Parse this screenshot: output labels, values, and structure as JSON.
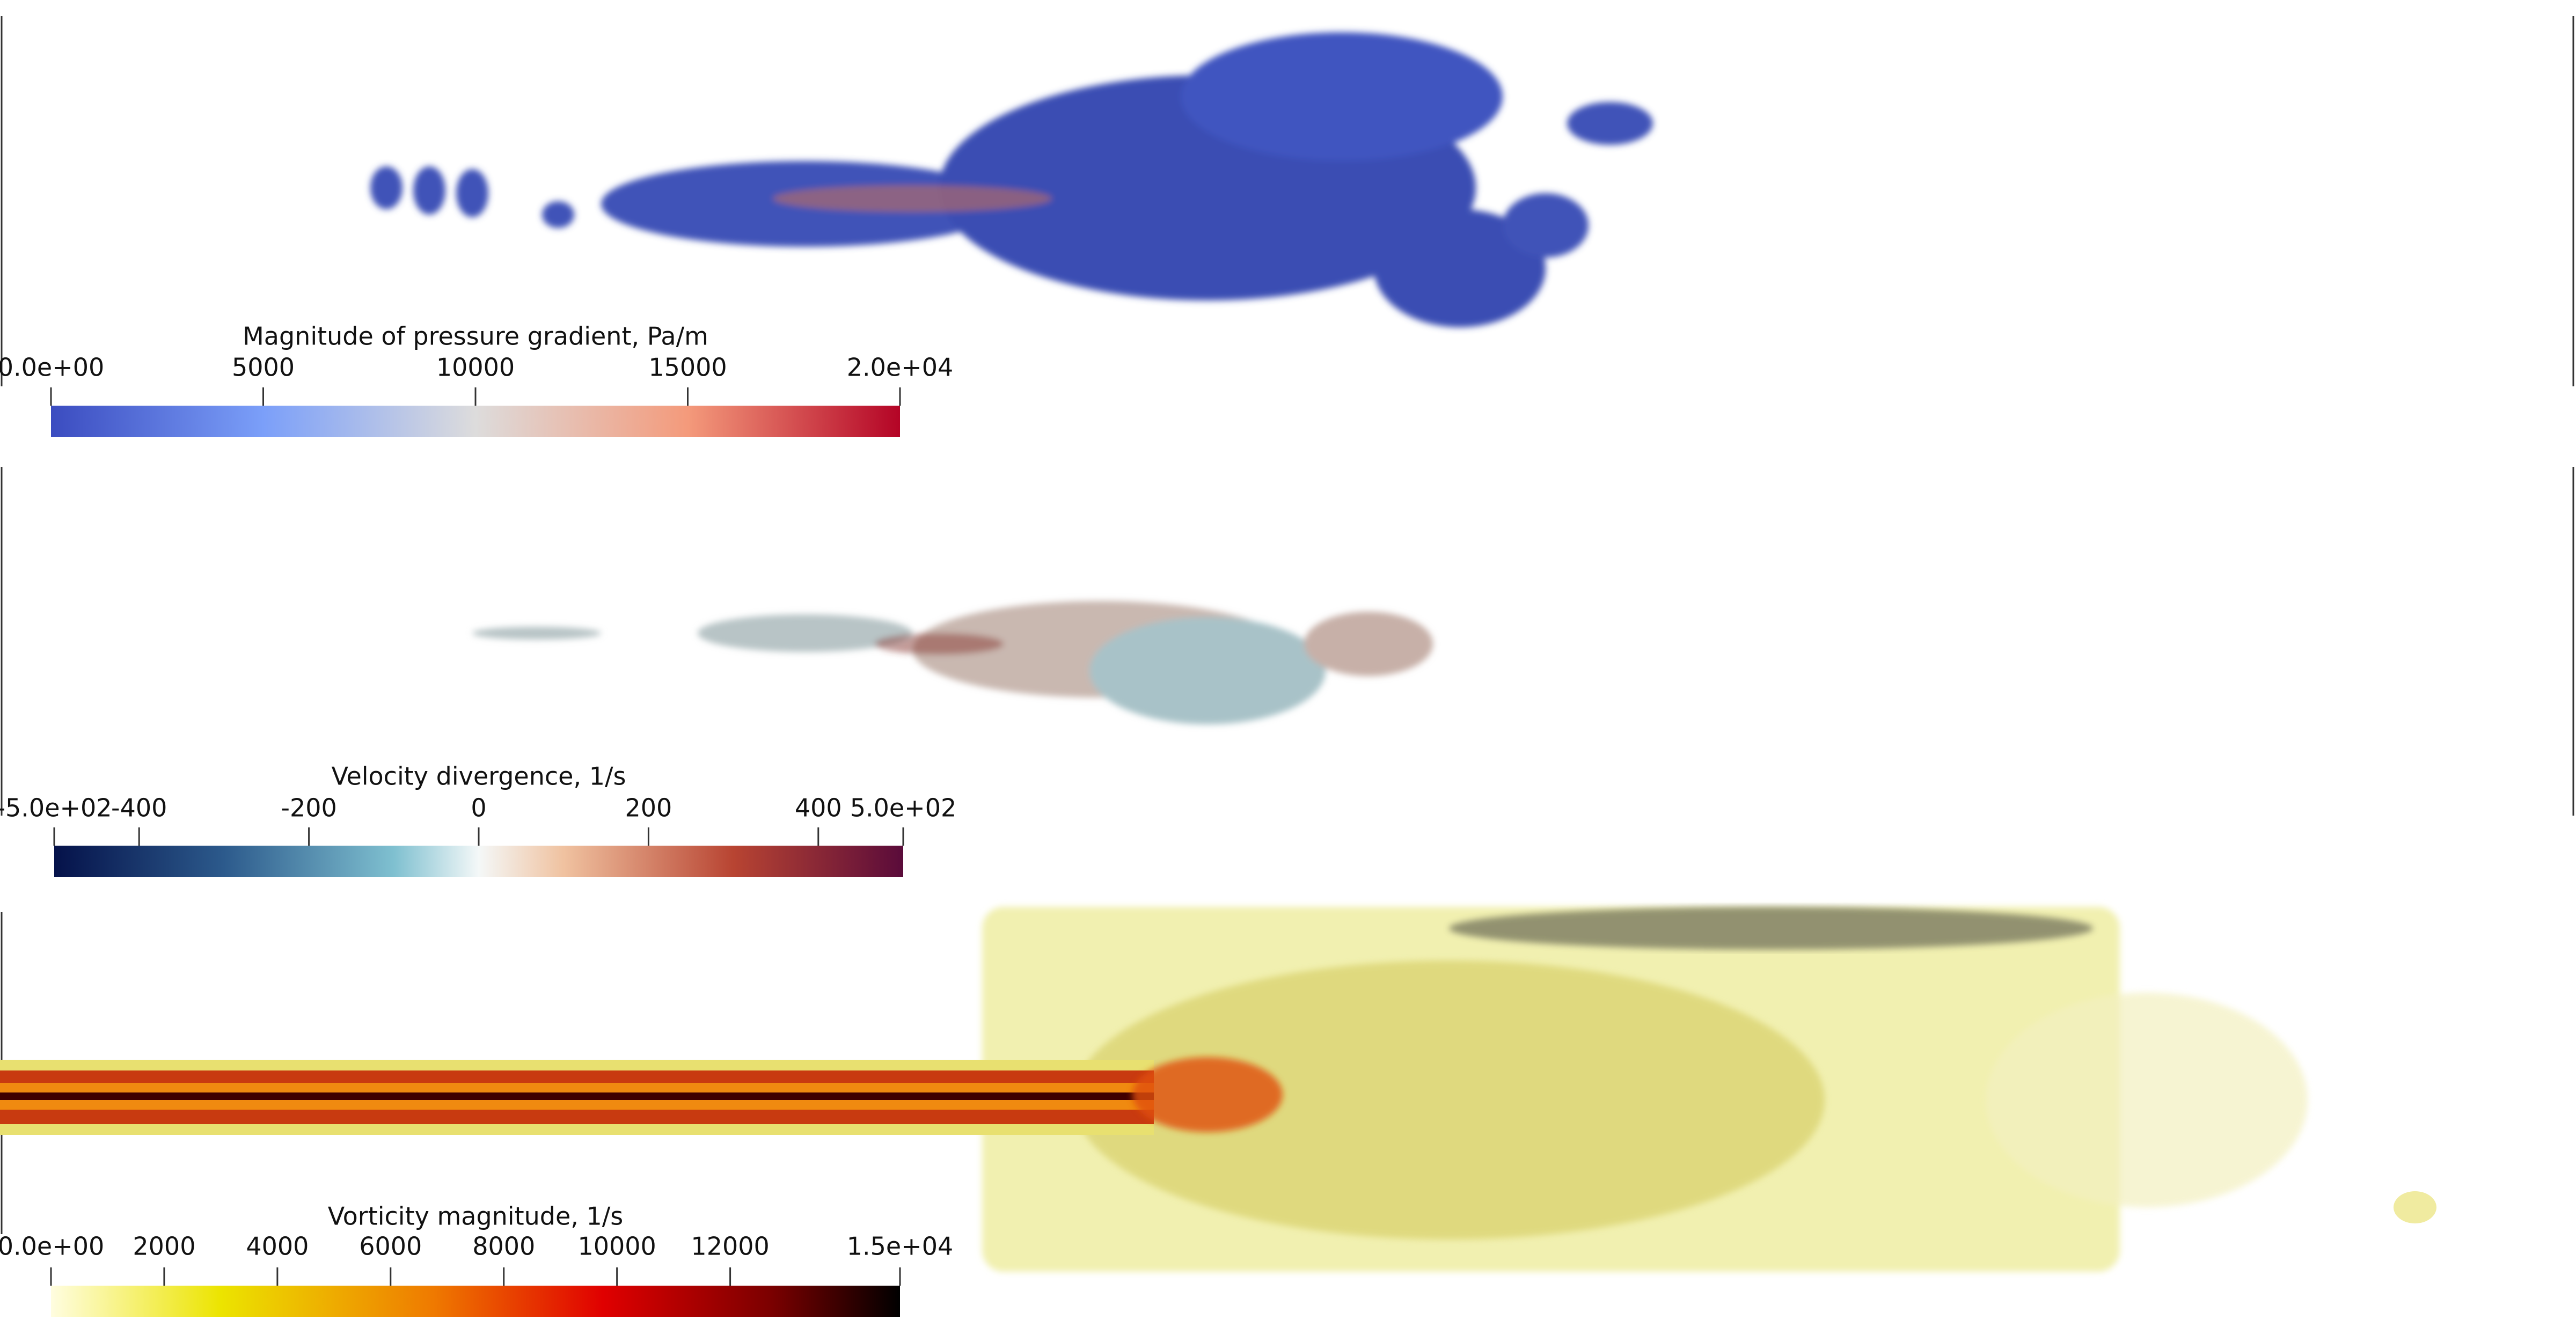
{
  "panels": [
    {
      "title": "Magnitude of pressure gradient, Pa/m",
      "range": [
        0,
        20000
      ],
      "ticks": [
        {
          "value": 0,
          "label": "0.0e+00"
        },
        5000,
        10000,
        15000,
        {
          "value": 20000,
          "label": "2.0e+04"
        }
      ]
    },
    {
      "title": "Velocity divergence, 1/s",
      "range": [
        -500,
        500
      ],
      "ticks": [
        {
          "value": -500,
          "label": "-5.0e+02"
        },
        -400,
        -200,
        0,
        200,
        400,
        {
          "value": 500,
          "label": "5.0e+02"
        }
      ]
    },
    {
      "title": "Vorticity magnitude, 1/s",
      "range": [
        0,
        15000
      ],
      "ticks": [
        {
          "value": 0,
          "label": "0.0e+00"
        },
        2000,
        4000,
        6000,
        8000,
        10000,
        12000,
        {
          "value": 15000,
          "label": "1.5e+04"
        }
      ]
    }
  ]
}
